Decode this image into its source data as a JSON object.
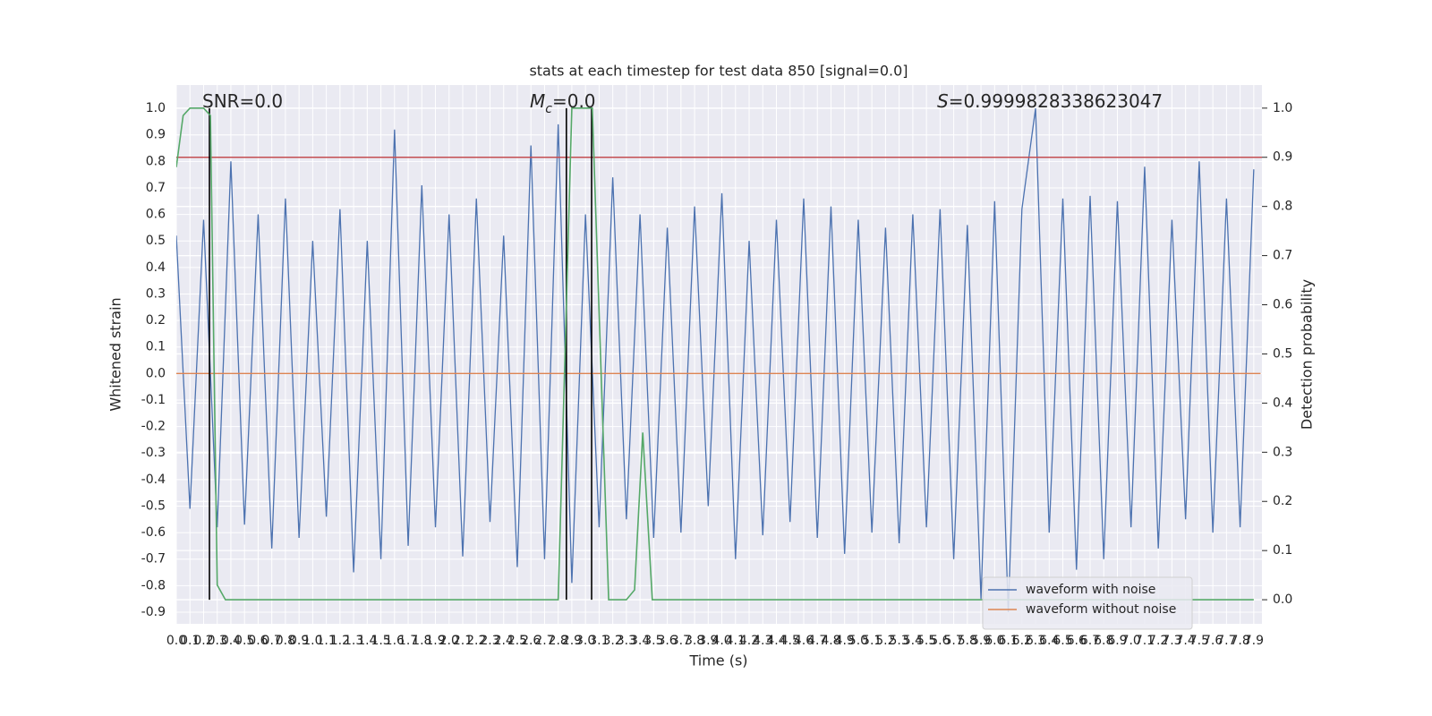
{
  "chart_data": {
    "type": "line",
    "title": "stats at each timestep for test data 850 [signal=0.0]",
    "xlabel": "Time (s)",
    "ylabel": "Whitened strain",
    "y2label": "Detection probability",
    "annotations": [
      {
        "parts": [
          "SNR=0.0"
        ]
      },
      {
        "parts": [
          "M",
          "c",
          "=0.0"
        ]
      },
      {
        "parts": [
          "S",
          "=0.9999828338623047"
        ]
      }
    ],
    "series": [
      {
        "name": "waveform with noise",
        "color": "#4c72b0",
        "in_legend": true,
        "x": [
          0.0,
          0.1,
          0.2,
          0.3,
          0.4,
          0.5,
          0.6,
          0.7,
          0.8,
          0.9,
          1.0,
          1.1,
          1.2,
          1.3,
          1.4,
          1.5,
          1.6,
          1.7,
          1.8,
          1.9,
          2.0,
          2.1,
          2.2,
          2.3,
          2.4,
          2.5,
          2.6,
          2.7,
          2.8,
          2.9,
          3.0,
          3.1,
          3.2,
          3.3,
          3.4,
          3.5,
          3.6,
          3.7,
          3.8,
          3.9,
          4.0,
          4.1,
          4.2,
          4.3,
          4.4,
          4.5,
          4.6,
          4.7,
          4.8,
          4.9,
          5.0,
          5.1,
          5.2,
          5.3,
          5.4,
          5.5,
          5.6,
          5.7,
          5.8,
          5.9,
          6.0,
          6.1,
          6.2,
          6.3,
          6.4,
          6.5,
          6.6,
          6.7,
          6.8,
          6.9,
          7.0,
          7.1,
          7.2,
          7.3,
          7.4,
          7.5,
          7.6,
          7.7,
          7.8,
          7.9
        ],
        "values": [
          0.52,
          -0.51,
          0.58,
          -0.58,
          0.8,
          -0.57,
          0.6,
          -0.66,
          0.66,
          -0.62,
          0.5,
          -0.54,
          0.62,
          -0.75,
          0.5,
          -0.7,
          0.92,
          -0.65,
          0.71,
          -0.58,
          0.6,
          -0.69,
          0.66,
          -0.56,
          0.52,
          -0.73,
          0.86,
          -0.7,
          0.94,
          -0.79,
          0.6,
          -0.58,
          0.74,
          -0.55,
          0.6,
          -0.62,
          0.55,
          -0.6,
          0.63,
          -0.5,
          0.68,
          -0.7,
          0.5,
          -0.61,
          0.58,
          -0.56,
          0.66,
          -0.62,
          0.63,
          -0.68,
          0.58,
          -0.6,
          0.55,
          -0.64,
          0.6,
          -0.58,
          0.62,
          -0.7,
          0.56,
          -0.85,
          0.65,
          -0.9,
          0.62,
          1.0,
          -0.6,
          0.66,
          -0.74,
          0.67,
          -0.7,
          0.65,
          -0.58,
          0.78,
          -0.66,
          0.58,
          -0.55,
          0.8,
          -0.6,
          0.66,
          -0.58,
          0.77
        ]
      },
      {
        "name": "waveform without noise",
        "color": "#dd8452",
        "in_legend": true,
        "x": [
          0.0,
          7.95
        ],
        "values": [
          0,
          0
        ]
      },
      {
        "name": "detection probability",
        "color": "#55a868",
        "axis": "y2",
        "in_legend": false,
        "x": [
          0,
          0.05,
          0.1,
          0.15,
          0.2,
          0.25,
          0.3,
          0.36,
          2.8,
          2.9,
          3.05,
          3.17,
          3.3,
          3.36,
          3.42,
          3.49,
          7.9
        ],
        "values": [
          0.88,
          0.985,
          1.0,
          1.0,
          1.0,
          0.985,
          0.03,
          0.0,
          0.0,
          1.0,
          1.0,
          0.0,
          0.0,
          0.02,
          0.34,
          0.0,
          0.0
        ]
      }
    ],
    "threshold": 0.9,
    "threshold_color": "#c44e52",
    "vlines": [
      0.243,
      2.86,
      3.045
    ],
    "vline_color": "#000000",
    "xlim": [
      0,
      7.96
    ],
    "ylim": [
      -0.944,
      1.088
    ],
    "y2lim": [
      -0.049,
      1.047
    ],
    "xticks": [
      {
        "value": 0,
        "label": "0.0"
      },
      0.1,
      0.2,
      0.3,
      0.4,
      0.5,
      0.6,
      0.7,
      0.8,
      0.9,
      {
        "value": 1,
        "label": "1.0"
      },
      1.1,
      1.2,
      1.3,
      1.4,
      1.5,
      1.6,
      1.7,
      1.8,
      1.9,
      {
        "value": 2,
        "label": "2.0"
      },
      2.1,
      2.2,
      2.3,
      2.4,
      2.5,
      2.6,
      2.7,
      2.8,
      2.9,
      {
        "value": 3,
        "label": "3.0"
      },
      3.1,
      3.2,
      3.3,
      3.4,
      3.5,
      3.6,
      3.7,
      3.8,
      3.9,
      {
        "value": 4,
        "label": "4.0"
      },
      4.1,
      4.2,
      4.3,
      4.4,
      4.5,
      4.6,
      4.7,
      4.8,
      4.9,
      {
        "value": 5,
        "label": "5.0"
      },
      5.1,
      5.2,
      5.3,
      5.4,
      5.5,
      5.6,
      5.7,
      5.8,
      5.9,
      {
        "value": 6,
        "label": "6.0"
      },
      6.1,
      6.2,
      6.3,
      6.4,
      6.5,
      6.6,
      6.7,
      6.8,
      6.9,
      {
        "value": 7,
        "label": "7.0"
      },
      7.1,
      7.2,
      7.3,
      7.4,
      7.5,
      7.6,
      7.7,
      7.8,
      7.9
    ],
    "yticks": [
      -0.9,
      -0.8,
      -0.7,
      -0.6,
      -0.5,
      -0.4,
      -0.3,
      -0.2,
      -0.1,
      {
        "value": 0,
        "label": "0.0"
      },
      0.1,
      0.2,
      0.3,
      0.4,
      0.5,
      0.6,
      0.7,
      0.8,
      0.9,
      {
        "value": 1,
        "label": "1.0"
      }
    ],
    "y2ticks": [
      {
        "value": 0,
        "label": "0.0"
      },
      0.1,
      0.2,
      0.3,
      0.4,
      0.5,
      0.6,
      0.7,
      0.8,
      0.9,
      {
        "value": 1,
        "label": "1.0"
      }
    ],
    "grid": true,
    "legend": "lower right"
  }
}
